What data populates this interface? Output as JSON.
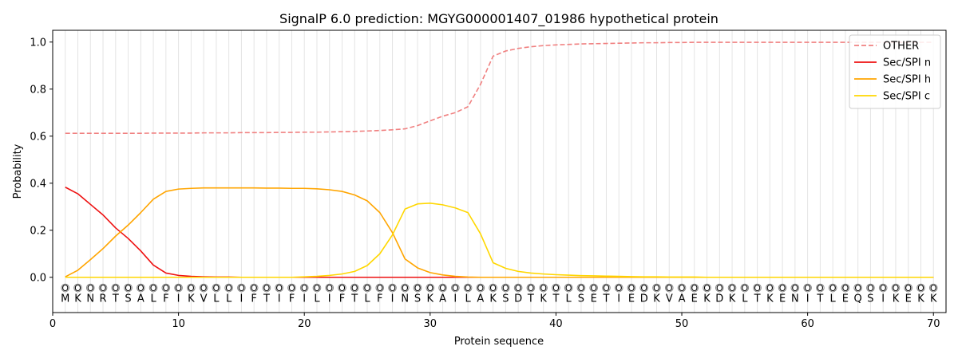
{
  "chart_data": {
    "type": "line",
    "title": "SignalP 6.0 prediction: MGYG000001407_01986 hypothetical protein",
    "xlabel": "Protein sequence",
    "ylabel": "Probability",
    "xlim": [
      0,
      71
    ],
    "ylim": [
      -0.15,
      1.05
    ],
    "xticks": [
      0,
      10,
      20,
      30,
      40,
      50,
      60,
      70
    ],
    "yticks": [
      0.0,
      0.2,
      0.4,
      0.6,
      0.8,
      1.0
    ],
    "ytick_labels": [
      "0.0",
      "0.2",
      "0.4",
      "0.6",
      "0.8",
      "1.0"
    ],
    "grid": "vertical lines at each residue",
    "legend_position": "upper-right",
    "sequence": [
      "M",
      "K",
      "N",
      "R",
      "T",
      "S",
      "A",
      "L",
      "F",
      "I",
      "K",
      "V",
      "L",
      "L",
      "I",
      "F",
      "T",
      "I",
      "F",
      "I",
      "L",
      "I",
      "F",
      "T",
      "L",
      "F",
      "I",
      "N",
      "S",
      "K",
      "A",
      "I",
      "L",
      "A",
      "K",
      "S",
      "D",
      "T",
      "K",
      "T",
      "L",
      "S",
      "E",
      "T",
      "I",
      "E",
      "D",
      "K",
      "V",
      "A",
      "E",
      "K",
      "D",
      "K",
      "L",
      "T",
      "K",
      "E",
      "N",
      "I",
      "T",
      "L",
      "E",
      "Q",
      "S",
      "I",
      "K",
      "E",
      "K",
      "K"
    ],
    "region_label": "O",
    "series": [
      {
        "name": "OTHER",
        "color": "#f08080",
        "dashed": true,
        "values": [
          0.612,
          0.612,
          0.612,
          0.612,
          0.612,
          0.612,
          0.612,
          0.613,
          0.613,
          0.613,
          0.613,
          0.614,
          0.614,
          0.614,
          0.615,
          0.615,
          0.615,
          0.616,
          0.616,
          0.617,
          0.617,
          0.618,
          0.619,
          0.62,
          0.622,
          0.624,
          0.627,
          0.631,
          0.645,
          0.665,
          0.685,
          0.7,
          0.725,
          0.82,
          0.94,
          0.962,
          0.973,
          0.98,
          0.985,
          0.988,
          0.99,
          0.992,
          0.993,
          0.994,
          0.995,
          0.996,
          0.997,
          0.997,
          0.998,
          0.998,
          0.999,
          0.999,
          0.999,
          0.999,
          0.999,
          0.999,
          0.999,
          0.999,
          0.999,
          0.999,
          0.999,
          0.999,
          0.999,
          0.999,
          0.999,
          0.999,
          0.999,
          0.999,
          0.999,
          0.999
        ]
      },
      {
        "name": "Sec/SPI n",
        "color": "#ee1111",
        "dashed": false,
        "values": [
          0.383,
          0.355,
          0.31,
          0.265,
          0.21,
          0.165,
          0.112,
          0.052,
          0.018,
          0.008,
          0.004,
          0.002,
          0.001,
          0.001,
          0,
          0,
          0,
          0,
          0,
          0,
          0,
          0,
          0,
          0,
          0,
          0,
          0,
          0,
          0,
          0,
          0,
          0,
          0,
          0,
          0,
          0,
          0,
          0,
          0,
          0,
          0,
          0,
          0,
          0,
          0,
          0,
          0,
          0,
          0,
          0,
          0,
          0,
          0,
          0,
          0,
          0,
          0,
          0,
          0,
          0,
          0,
          0,
          0,
          0,
          0,
          0,
          0,
          0,
          0,
          0
        ]
      },
      {
        "name": "Sec/SPI h",
        "color": "#ffa500",
        "dashed": false,
        "values": [
          0.002,
          0.03,
          0.075,
          0.122,
          0.175,
          0.222,
          0.275,
          0.332,
          0.365,
          0.375,
          0.378,
          0.38,
          0.38,
          0.38,
          0.38,
          0.38,
          0.379,
          0.379,
          0.378,
          0.378,
          0.376,
          0.372,
          0.365,
          0.35,
          0.325,
          0.275,
          0.19,
          0.078,
          0.04,
          0.02,
          0.01,
          0.004,
          0.001,
          0,
          0,
          0,
          0,
          0,
          0,
          0,
          0,
          0,
          0,
          0,
          0,
          0,
          0,
          0,
          0,
          0,
          0,
          0,
          0,
          0,
          0,
          0,
          0,
          0,
          0,
          0,
          0,
          0,
          0,
          0,
          0,
          0,
          0,
          0,
          0,
          0
        ]
      },
      {
        "name": "Sec/SPI c",
        "color": "#ffd700",
        "dashed": false,
        "values": [
          0,
          0,
          0,
          0,
          0,
          0,
          0,
          0,
          0,
          0,
          0,
          0,
          0,
          0,
          0,
          0,
          0,
          0,
          0,
          0.002,
          0.004,
          0.008,
          0.014,
          0.025,
          0.05,
          0.1,
          0.18,
          0.29,
          0.312,
          0.315,
          0.308,
          0.295,
          0.275,
          0.185,
          0.062,
          0.038,
          0.025,
          0.018,
          0.014,
          0.011,
          0.009,
          0.007,
          0.006,
          0.005,
          0.004,
          0.003,
          0.002,
          0.002,
          0.001,
          0.001,
          0.001,
          0,
          0,
          0,
          0,
          0,
          0,
          0,
          0,
          0,
          0,
          0,
          0,
          0,
          0,
          0,
          0,
          0,
          0,
          0
        ]
      }
    ]
  }
}
